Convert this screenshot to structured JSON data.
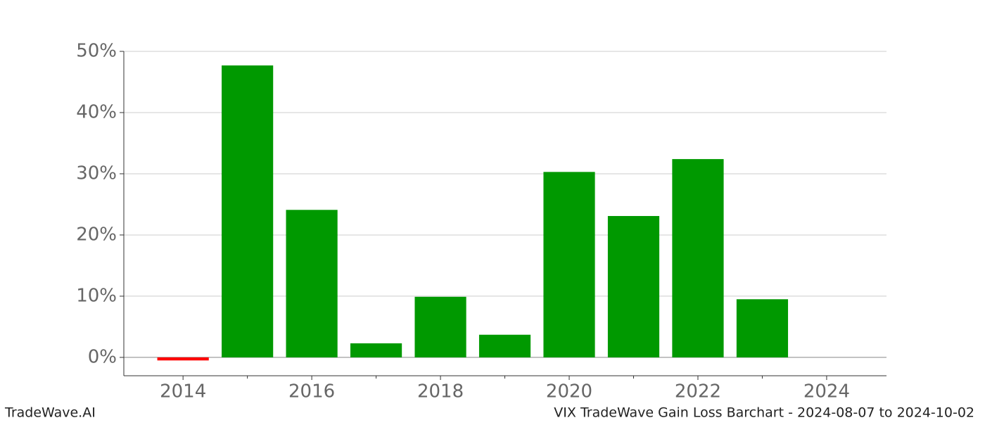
{
  "chart_data": {
    "type": "bar",
    "x": [
      2014,
      2015,
      2016,
      2017,
      2018,
      2019,
      2020,
      2021,
      2022,
      2023
    ],
    "values": [
      -0.5,
      47.7,
      24.1,
      2.3,
      9.9,
      3.7,
      30.3,
      23.1,
      32.4,
      9.5
    ],
    "positive_color": "#009900",
    "negative_color": "#ff0000",
    "xlim": [
      2013.08,
      2024.93
    ],
    "xticks": [
      2014,
      2016,
      2018,
      2020,
      2022,
      2024
    ],
    "xminor_ticks": [
      2015,
      2017,
      2019,
      2021,
      2023
    ],
    "ylim": [
      -3,
      50
    ],
    "yticks": [
      {
        "value": 0,
        "label": "0%"
      },
      {
        "value": 10,
        "label": "10%"
      },
      {
        "value": 20,
        "label": "20%"
      },
      {
        "value": 30,
        "label": "30%"
      },
      {
        "value": 40,
        "label": "40%"
      },
      {
        "value": 50,
        "label": "50%"
      }
    ],
    "grid": true,
    "footer_left": "TradeWave.AI",
    "footer_right": "VIX TradeWave Gain Loss Barchart - 2024-08-07 to 2024-10-02"
  }
}
